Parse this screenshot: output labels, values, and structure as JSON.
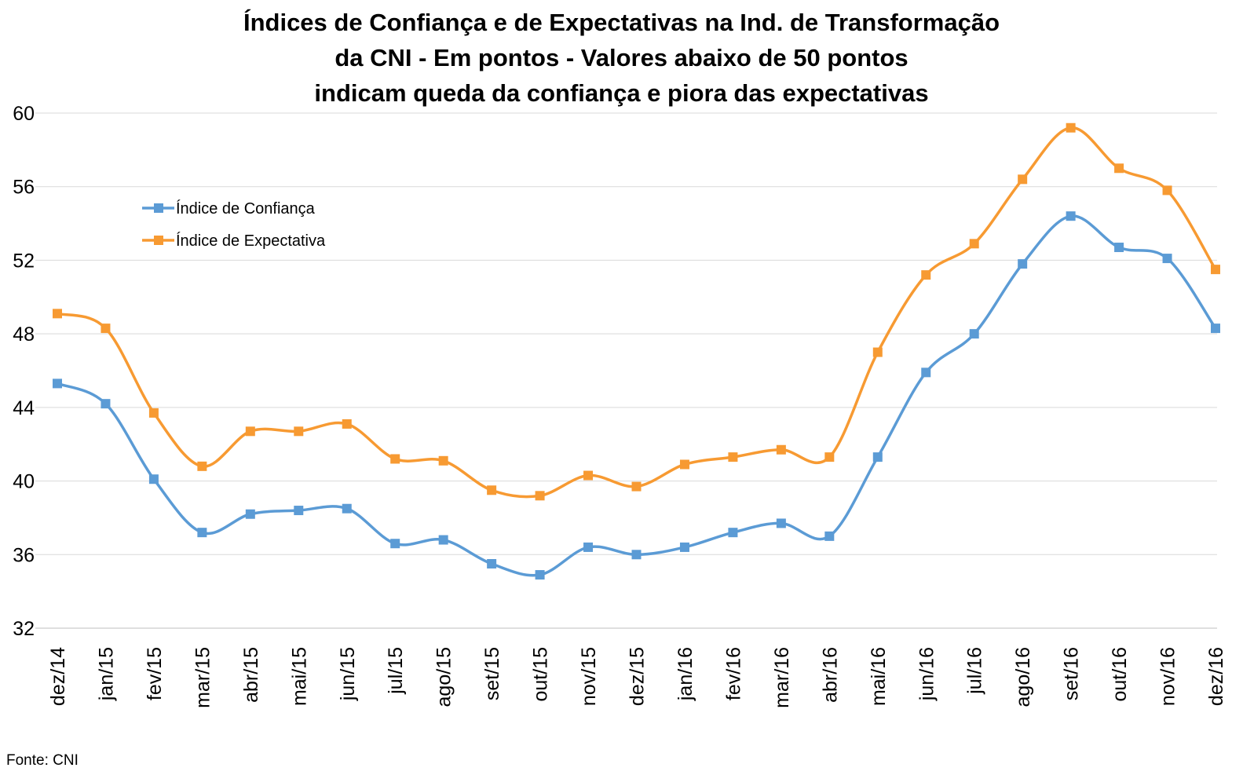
{
  "chart_data": {
    "type": "line",
    "title_lines": [
      "Índices de Confiança e de Expectativas na Ind. de Transformação",
      "da CNI - Em pontos - Valores abaixo de 50 pontos",
      "indicam queda da confiança e piora das expectativas"
    ],
    "categories": [
      "dez/14",
      "jan/15",
      "fev/15",
      "mar/15",
      "abr/15",
      "mai/15",
      "jun/15",
      "jul/15",
      "ago/15",
      "set/15",
      "out/15",
      "nov/15",
      "dez/15",
      "jan/16",
      "fev/16",
      "mar/16",
      "abr/16",
      "mai/16",
      "jun/16",
      "jul/16",
      "ago/16",
      "set/16",
      "out/16",
      "nov/16",
      "dez/16"
    ],
    "series": [
      {
        "name": "Índice de Confiança",
        "color": "#5B9BD5",
        "values": [
          45.3,
          44.2,
          40.1,
          37.2,
          38.2,
          38.4,
          38.5,
          36.6,
          36.8,
          35.5,
          34.9,
          36.4,
          36.0,
          36.4,
          37.2,
          37.7,
          37.0,
          41.3,
          45.9,
          48.0,
          51.8,
          54.4,
          52.7,
          52.1,
          48.3
        ]
      },
      {
        "name": "Índice de Expectativa",
        "color": "#F79A32",
        "values": [
          49.1,
          48.3,
          43.7,
          40.8,
          42.7,
          42.7,
          43.1,
          41.2,
          41.1,
          39.5,
          39.2,
          40.3,
          39.7,
          40.9,
          41.3,
          41.7,
          41.3,
          47.0,
          51.2,
          52.9,
          56.4,
          59.2,
          57.0,
          55.8,
          51.5
        ]
      }
    ],
    "y_ticks": [
      32,
      36,
      40,
      44,
      48,
      52,
      56,
      60
    ],
    "ylim": [
      32,
      60
    ],
    "grid": true,
    "legend_position": "upper-left",
    "source": "Fonte: CNI"
  }
}
